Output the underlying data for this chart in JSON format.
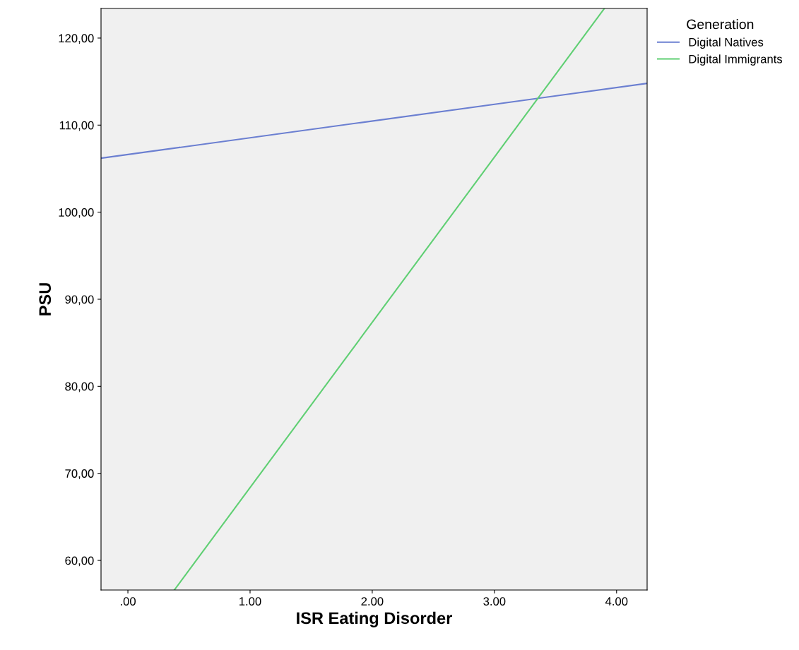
{
  "chart_data": {
    "type": "line",
    "xlabel": "ISR Eating Disorder",
    "ylabel": "PSU",
    "legend_title": "Generation",
    "series": [
      {
        "name": "Digital Natives",
        "color": "#6b7fd1",
        "x": [
          -0.22,
          4.25
        ],
        "values": [
          106.2,
          114.8
        ]
      },
      {
        "name": "Digital Immigrants",
        "color": "#5fcf73",
        "x": [
          0.38,
          3.9
        ],
        "values": [
          56.6,
          123.4
        ]
      }
    ],
    "xlim": [
      -0.22,
      4.25
    ],
    "ylim": [
      56.6,
      123.4
    ],
    "xticks": [
      {
        "value": 0,
        "label": ".00"
      },
      {
        "value": 1,
        "label": "1.00"
      },
      {
        "value": 2,
        "label": "2.00"
      },
      {
        "value": 3,
        "label": "3.00"
      },
      {
        "value": 4,
        "label": "4.00"
      }
    ],
    "yticks": [
      {
        "value": 60,
        "label": "60,00"
      },
      {
        "value": 70,
        "label": "70,00"
      },
      {
        "value": 80,
        "label": "80,00"
      },
      {
        "value": 90,
        "label": "90,00"
      },
      {
        "value": 100,
        "label": "100,00"
      },
      {
        "value": 110,
        "label": "110,00"
      },
      {
        "value": 120,
        "label": "120,00"
      }
    ],
    "grid": false,
    "legend": "top right",
    "marker": "none",
    "line_style": "solid"
  }
}
